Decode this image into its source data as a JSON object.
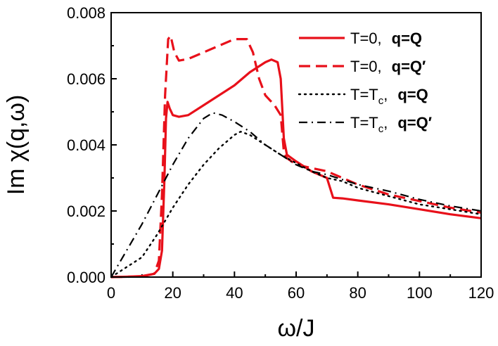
{
  "chart_data": {
    "type": "line",
    "title": "",
    "xlabel": "ω/J",
    "ylabel": "Im χ(q,ω)",
    "xlim": [
      0,
      120
    ],
    "ylim": [
      0,
      0.008
    ],
    "x_ticks": [
      "0",
      "20",
      "40",
      "60",
      "80",
      "100",
      "120"
    ],
    "y_ticks": [
      "0.000",
      "0.002",
      "0.004",
      "0.006",
      "0.008"
    ],
    "legend_position": "top-right",
    "grid": false,
    "series": [
      {
        "name": "T=0, q=Q",
        "legend_prefix": "T=0,",
        "legend_q": "q=Q",
        "color": "#e8101a",
        "dash": "solid",
        "points": [
          [
            0,
            0
          ],
          [
            5,
            1e-05
          ],
          [
            10,
            3e-05
          ],
          [
            14,
            0.0001
          ],
          [
            15.5,
            0.00025
          ],
          [
            16.5,
            0.0008
          ],
          [
            17.3,
            0.003
          ],
          [
            17.8,
            0.0048
          ],
          [
            18.3,
            0.0053
          ],
          [
            19,
            0.0051
          ],
          [
            20,
            0.0049
          ],
          [
            22,
            0.00485
          ],
          [
            25,
            0.0049
          ],
          [
            30,
            0.0052
          ],
          [
            35,
            0.0055
          ],
          [
            40,
            0.0058
          ],
          [
            45,
            0.0062
          ],
          [
            50,
            0.0065
          ],
          [
            52,
            0.00658
          ],
          [
            54,
            0.0065
          ],
          [
            55,
            0.006
          ],
          [
            56,
            0.0042
          ],
          [
            57,
            0.0037
          ],
          [
            60,
            0.0035
          ],
          [
            65,
            0.0032
          ],
          [
            70,
            0.003
          ],
          [
            71,
            0.0027
          ],
          [
            72,
            0.0024
          ],
          [
            75,
            0.00238
          ],
          [
            80,
            0.00232
          ],
          [
            90,
            0.0022
          ],
          [
            100,
            0.00205
          ],
          [
            110,
            0.0019
          ],
          [
            120,
            0.00178
          ]
        ]
      },
      {
        "name": "T=0, q=Q′",
        "legend_prefix": "T=0,",
        "legend_q": "q=Q′",
        "color": "#e8101a",
        "dash": "dashed",
        "points": [
          [
            0,
            0
          ],
          [
            10,
            2e-05
          ],
          [
            14,
            0.0001
          ],
          [
            15.5,
            0.0005
          ],
          [
            16.5,
            0.0025
          ],
          [
            17.5,
            0.0055
          ],
          [
            18.5,
            0.0072
          ],
          [
            19.3,
            0.0073
          ],
          [
            20.5,
            0.0068
          ],
          [
            22,
            0.00655
          ],
          [
            25,
            0.0066
          ],
          [
            30,
            0.0068
          ],
          [
            35,
            0.007
          ],
          [
            40,
            0.0072
          ],
          [
            44,
            0.0072
          ],
          [
            46,
            0.0068
          ],
          [
            48,
            0.006
          ],
          [
            50,
            0.0055
          ],
          [
            53,
            0.0052
          ],
          [
            55,
            0.0049
          ],
          [
            56,
            0.0038
          ],
          [
            57,
            0.0036
          ],
          [
            60,
            0.0034
          ],
          [
            65,
            0.0033
          ],
          [
            70,
            0.0032
          ],
          [
            80,
            0.0028
          ],
          [
            90,
            0.0025
          ],
          [
            100,
            0.0023
          ],
          [
            110,
            0.0021
          ],
          [
            120,
            0.00195
          ]
        ]
      },
      {
        "name": "T=Tc, q=Q",
        "legend_prefix": "T=T",
        "legend_sub": "c",
        "legend_q": "q=Q",
        "color": "#000000",
        "dash": "dotted",
        "points": [
          [
            0,
            0
          ],
          [
            10,
            0.0006
          ],
          [
            15,
            0.0013
          ],
          [
            20,
            0.0021
          ],
          [
            25,
            0.0028
          ],
          [
            30,
            0.0034
          ],
          [
            35,
            0.0039
          ],
          [
            40,
            0.0043
          ],
          [
            42,
            0.0044
          ],
          [
            45,
            0.0043
          ],
          [
            50,
            0.004
          ],
          [
            55,
            0.0037
          ],
          [
            60,
            0.00345
          ],
          [
            65,
            0.0032
          ],
          [
            70,
            0.003
          ],
          [
            75,
            0.0029
          ],
          [
            80,
            0.0027
          ],
          [
            90,
            0.00245
          ],
          [
            100,
            0.0022
          ],
          [
            110,
            0.00205
          ],
          [
            120,
            0.0019
          ]
        ]
      },
      {
        "name": "T=Tc, q=Q′",
        "legend_prefix": "T=T",
        "legend_sub": "c",
        "legend_q": "q=Q′",
        "color": "#000000",
        "dash": "dashdot",
        "points": [
          [
            0,
            0
          ],
          [
            5,
            0.0008
          ],
          [
            10,
            0.0016
          ],
          [
            15,
            0.0025
          ],
          [
            20,
            0.0034
          ],
          [
            25,
            0.0042
          ],
          [
            30,
            0.0048
          ],
          [
            33,
            0.00497
          ],
          [
            36,
            0.0049
          ],
          [
            40,
            0.0047
          ],
          [
            45,
            0.0044
          ],
          [
            50,
            0.004
          ],
          [
            55,
            0.0037
          ],
          [
            60,
            0.0034
          ],
          [
            65,
            0.0032
          ],
          [
            70,
            0.0031
          ],
          [
            80,
            0.0028
          ],
          [
            90,
            0.0026
          ],
          [
            100,
            0.00235
          ],
          [
            110,
            0.00215
          ],
          [
            120,
            0.002
          ]
        ]
      }
    ]
  }
}
